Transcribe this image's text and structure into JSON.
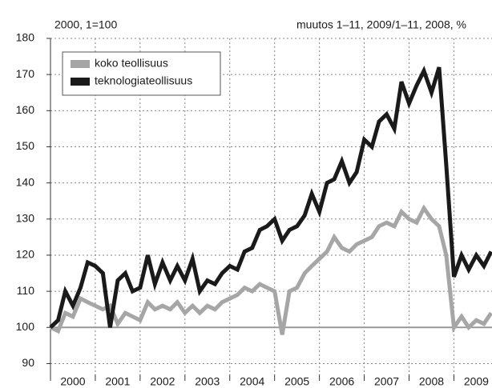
{
  "chart_data": {
    "type": "line",
    "left_label": "2000, 1=100",
    "right_label": "muutos 1–11, 2009/1–11, 2008, %",
    "x": [
      2000.0,
      2000.17,
      2000.33,
      2000.5,
      2000.67,
      2000.83,
      2001.0,
      2001.17,
      2001.33,
      2001.5,
      2001.67,
      2001.83,
      2002.0,
      2002.17,
      2002.33,
      2002.5,
      2002.67,
      2002.83,
      2003.0,
      2003.17,
      2003.33,
      2003.5,
      2003.67,
      2003.83,
      2004.0,
      2004.17,
      2004.33,
      2004.5,
      2004.67,
      2004.83,
      2005.0,
      2005.17,
      2005.33,
      2005.5,
      2005.67,
      2005.83,
      2006.0,
      2006.17,
      2006.33,
      2006.5,
      2006.67,
      2006.83,
      2007.0,
      2007.17,
      2007.33,
      2007.5,
      2007.67,
      2007.83,
      2008.0,
      2008.17,
      2008.33,
      2008.5,
      2008.67,
      2008.83,
      2009.0,
      2009.17,
      2009.33,
      2009.5,
      2009.67,
      2009.83
    ],
    "series": [
      {
        "name": "koko teollisuus",
        "color": "#a6a6a6",
        "values": [
          100,
          99,
          104,
          103,
          108,
          107,
          106,
          105,
          106,
          101,
          104,
          103,
          102,
          107,
          105,
          106,
          105,
          107,
          104,
          106,
          104,
          106,
          105,
          107,
          108,
          109,
          111,
          110,
          112,
          111,
          110,
          98,
          110,
          111,
          115,
          117,
          119,
          121,
          125,
          122,
          121,
          123,
          124,
          125,
          128,
          129,
          128,
          132,
          130,
          129,
          133,
          130,
          128,
          120,
          100,
          103,
          100,
          102,
          101,
          104
        ]
      },
      {
        "name": "teknologiateollisuus",
        "color": "#1a1a1a",
        "values": [
          100,
          102,
          110,
          106,
          111,
          118,
          117,
          115,
          100,
          113,
          115,
          110,
          111,
          120,
          112,
          118,
          113,
          117,
          113,
          119,
          110,
          113,
          112,
          115,
          117,
          116,
          121,
          122,
          127,
          128,
          130,
          124,
          127,
          128,
          131,
          137,
          132,
          140,
          141,
          146,
          140,
          143,
          152,
          150,
          157,
          159,
          155,
          168,
          162,
          167,
          171,
          165,
          172,
          145,
          114,
          120,
          116,
          120,
          117,
          121
        ]
      }
    ],
    "xlim": [
      2000,
      2009.85
    ],
    "xticks": [
      2000,
      2001,
      2002,
      2003,
      2004,
      2005,
      2006,
      2007,
      2008,
      2009
    ],
    "ylim": [
      87,
      180
    ],
    "yticks": [
      90,
      100,
      110,
      120,
      130,
      140,
      150,
      160,
      170,
      180
    ],
    "baseline": 100,
    "grid": true,
    "legend": "top-left"
  }
}
